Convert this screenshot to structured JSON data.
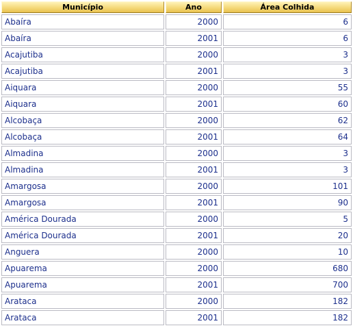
{
  "table": {
    "headers": {
      "municipio": "Município",
      "ano": "Ano",
      "area": "Área Colhida"
    },
    "rows": [
      {
        "municipio": "Abaíra",
        "ano": "2000",
        "area": "6"
      },
      {
        "municipio": "Abaíra",
        "ano": "2001",
        "area": "6"
      },
      {
        "municipio": "Acajutiba",
        "ano": "2000",
        "area": "3"
      },
      {
        "municipio": "Acajutiba",
        "ano": "2001",
        "area": "3"
      },
      {
        "municipio": "Aiquara",
        "ano": "2000",
        "area": "55"
      },
      {
        "municipio": "Aiquara",
        "ano": "2001",
        "area": "60"
      },
      {
        "municipio": "Alcobaça",
        "ano": "2000",
        "area": "62"
      },
      {
        "municipio": "Alcobaça",
        "ano": "2001",
        "area": "64"
      },
      {
        "municipio": "Almadina",
        "ano": "2000",
        "area": "3"
      },
      {
        "municipio": "Almadina",
        "ano": "2001",
        "area": "3"
      },
      {
        "municipio": "Amargosa",
        "ano": "2000",
        "area": "101"
      },
      {
        "municipio": "Amargosa",
        "ano": "2001",
        "area": "90"
      },
      {
        "municipio": "América Dourada",
        "ano": "2000",
        "area": "5"
      },
      {
        "municipio": "América Dourada",
        "ano": "2001",
        "area": "20"
      },
      {
        "municipio": "Anguera",
        "ano": "2000",
        "area": "10"
      },
      {
        "municipio": "Apuarema",
        "ano": "2000",
        "area": "680"
      },
      {
        "municipio": "Apuarema",
        "ano": "2001",
        "area": "700"
      },
      {
        "municipio": "Arataca",
        "ano": "2000",
        "area": "182"
      },
      {
        "municipio": "Arataca",
        "ano": "2001",
        "area": "182"
      }
    ]
  },
  "colors": {
    "link_text": "#1c2f8c",
    "header_gold": "#f5d97a",
    "cell_border": "#b9b9c2"
  }
}
